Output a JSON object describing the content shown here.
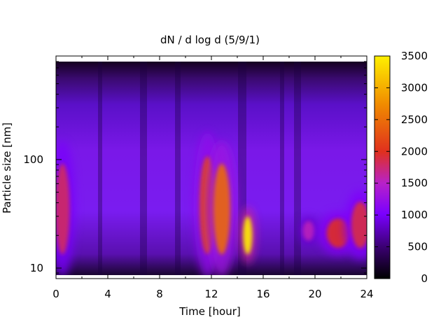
{
  "chart_data": {
    "type": "heatmap",
    "title": "dN / d log d (5/9/1)",
    "xlabel": "Time [hour]",
    "ylabel": "Particle size [nm]",
    "x_range": [
      0,
      24
    ],
    "y_range": [
      8,
      900
    ],
    "y_scale": "log",
    "x_ticks": [
      0,
      4,
      8,
      12,
      16,
      20,
      24
    ],
    "y_ticks": [
      10,
      100
    ],
    "colorbar": {
      "range": [
        0,
        3500
      ],
      "ticks": [
        0,
        500,
        1000,
        1500,
        2000,
        2500,
        3000,
        3500
      ],
      "palette": [
        "#000000",
        "#3a0070",
        "#7a00ff",
        "#b822c8",
        "#e0301e",
        "#f08a00",
        "#fff000"
      ]
    },
    "features": [
      {
        "time_hour": 0.5,
        "size_nm": 35,
        "value": 2100
      },
      {
        "time_hour": 11.7,
        "size_nm": 38,
        "value": 2500
      },
      {
        "time_hour": 12.8,
        "size_nm": 35,
        "value": 2700
      },
      {
        "time_hour": 14.8,
        "size_nm": 20,
        "value": 3500
      },
      {
        "time_hour": 19.5,
        "size_nm": 22,
        "value": 1800
      },
      {
        "time_hour": 21.8,
        "size_nm": 21,
        "value": 2300
      },
      {
        "time_hour": 23.5,
        "size_nm": 25,
        "value": 2200
      }
    ]
  }
}
